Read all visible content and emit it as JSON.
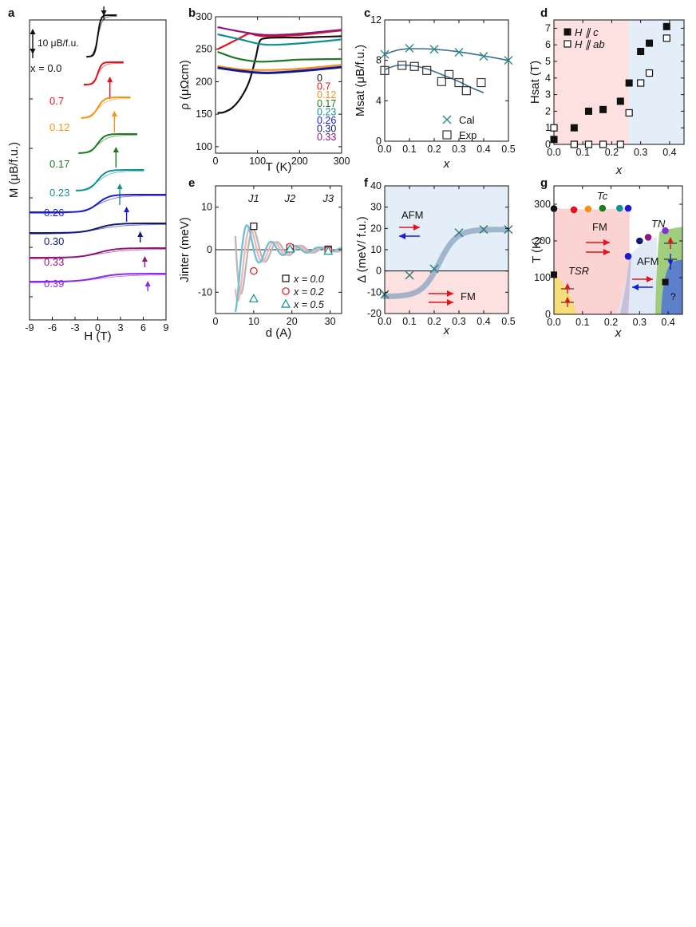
{
  "chart_data": [
    {
      "panel": "a",
      "type": "line",
      "xlabel": "H (T)",
      "ylabel": "M (μB/f.u.)",
      "scale_bar": "10 μB/f.u.",
      "x_prefix": "x = ",
      "xlim": [
        -9,
        9
      ],
      "xticks": [
        "-9",
        "-6",
        "-3",
        "0",
        "3",
        "6",
        "9"
      ],
      "series": [
        {
          "name": "0.0",
          "color": "#111111",
          "hsat": 1.0,
          "arrow_h": 0.8
        },
        {
          "name": "0.7",
          "color": "#e3121b",
          "hsat": 1.3,
          "arrow_h": 1.6
        },
        {
          "name": "0.12",
          "color": "#f29318",
          "hsat": 2.2,
          "arrow_h": 2.2
        },
        {
          "name": "0.17",
          "color": "#1f7a1f",
          "hsat": 2.4,
          "arrow_h": 2.4
        },
        {
          "name": "0.23",
          "color": "#139191",
          "hsat": 2.9,
          "arrow_h": 2.9
        },
        {
          "name": "0.26",
          "color": "#1a1adb",
          "hsat": 3.9,
          "arrow_h": 3.8
        },
        {
          "name": "0.30",
          "color": "#0e1a78",
          "hsat": 5.6,
          "arrow_h": 5.6
        },
        {
          "name": "0.33",
          "color": "#8b1a7c",
          "hsat": 6.2,
          "arrow_h": 6.2
        },
        {
          "name": "0.39",
          "color": "#8a2be2",
          "hsat": 6.6,
          "arrow_h": 6.6
        }
      ]
    },
    {
      "panel": "b",
      "type": "line",
      "xlabel": "T (K)",
      "ylabel": "ρ (μΩcm)",
      "xlim": [
        0,
        300
      ],
      "ylim": [
        90,
        300
      ],
      "xticks": [
        "0",
        "100",
        "200",
        "300"
      ],
      "yticks": [
        "100",
        "150",
        "200",
        "250",
        "300"
      ],
      "series": [
        {
          "name": "0",
          "color": "#111111",
          "points": [
            [
              5,
              152
            ],
            [
              20,
              153
            ],
            [
              40,
              160
            ],
            [
              60,
              175
            ],
            [
              80,
              200
            ],
            [
              95,
              235
            ],
            [
              105,
              262
            ],
            [
              120,
              267
            ],
            [
              150,
              268
            ],
            [
              200,
              268
            ],
            [
              250,
              269
            ],
            [
              300,
              270
            ]
          ]
        },
        {
          "name": "0.7",
          "color": "#e3121b",
          "points": [
            [
              5,
              250
            ],
            [
              30,
              258
            ],
            [
              60,
              268
            ],
            [
              80,
              274
            ],
            [
              95,
              272
            ],
            [
              120,
              270
            ],
            [
              200,
              272
            ],
            [
              300,
              279
            ]
          ]
        },
        {
          "name": "0.12",
          "color": "#f29318",
          "points": [
            [
              5,
              224
            ],
            [
              60,
              219
            ],
            [
              120,
              218
            ],
            [
              200,
              220
            ],
            [
              300,
              226
            ]
          ]
        },
        {
          "name": "0.17",
          "color": "#1f7a1f",
          "points": [
            [
              5,
              246
            ],
            [
              50,
              236
            ],
            [
              100,
              231
            ],
            [
              150,
              232
            ],
            [
              200,
              234
            ],
            [
              300,
              235
            ]
          ]
        },
        {
          "name": "0.23",
          "color": "#139191",
          "points": [
            [
              5,
              273
            ],
            [
              60,
              265
            ],
            [
              120,
              257
            ],
            [
              200,
              259
            ],
            [
              300,
              265
            ]
          ]
        },
        {
          "name": "0.26",
          "color": "#1a1adb",
          "points": [
            [
              5,
              222
            ],
            [
              60,
              217
            ],
            [
              120,
              214
            ],
            [
              200,
              217
            ],
            [
              300,
              223
            ]
          ]
        },
        {
          "name": "0.30",
          "color": "#0e1a78",
          "points": [
            [
              5,
              221
            ],
            [
              60,
              216
            ],
            [
              120,
              213
            ],
            [
              200,
              216
            ],
            [
              300,
              222
            ]
          ]
        },
        {
          "name": "0.33",
          "color": "#8b1a7c",
          "points": [
            [
              5,
              284
            ],
            [
              60,
              277
            ],
            [
              120,
              272
            ],
            [
              200,
              274
            ],
            [
              300,
              280
            ]
          ]
        }
      ]
    },
    {
      "panel": "c",
      "type": "scatter",
      "xlabel": "x",
      "ylabel": "Msat (μB/f.u.)",
      "xlim": [
        0,
        0.5
      ],
      "ylim": [
        0,
        12
      ],
      "xticks": [
        "0.0",
        "0.1",
        "0.2",
        "0.3",
        "0.4",
        "0.5"
      ],
      "yticks": [
        "0",
        "4",
        "8",
        "12"
      ],
      "series": [
        {
          "name": "Cal",
          "marker": "x",
          "color": "#2e8b8b",
          "points": [
            [
              0.0,
              8.6
            ],
            [
              0.1,
              9.2
            ],
            [
              0.2,
              9.1
            ],
            [
              0.3,
              8.8
            ],
            [
              0.4,
              8.4
            ],
            [
              0.5,
              8.0
            ]
          ],
          "fit": [
            [
              0.0,
              8.6
            ],
            [
              0.05,
              9.0
            ],
            [
              0.1,
              9.15
            ],
            [
              0.2,
              9.1
            ],
            [
              0.3,
              8.85
            ],
            [
              0.4,
              8.45
            ],
            [
              0.5,
              8.0
            ]
          ]
        },
        {
          "name": "Exp",
          "marker": "square",
          "color": "#333333",
          "points": [
            [
              0.0,
              7.0
            ],
            [
              0.07,
              7.5
            ],
            [
              0.12,
              7.4
            ],
            [
              0.17,
              7.0
            ],
            [
              0.23,
              5.9
            ],
            [
              0.26,
              6.6
            ],
            [
              0.3,
              5.8
            ],
            [
              0.33,
              5.0
            ],
            [
              0.39,
              5.8
            ]
          ],
          "fit": [
            [
              0.0,
              7.1
            ],
            [
              0.05,
              7.5
            ],
            [
              0.1,
              7.5
            ],
            [
              0.15,
              7.3
            ],
            [
              0.2,
              6.9
            ],
            [
              0.25,
              6.4
            ],
            [
              0.3,
              5.9
            ],
            [
              0.35,
              5.3
            ],
            [
              0.4,
              4.8
            ]
          ]
        }
      ]
    },
    {
      "panel": "d",
      "type": "scatter",
      "xlabel": "x",
      "ylabel": "Hsat (T)",
      "xlim": [
        0,
        0.45
      ],
      "ylim": [
        0,
        7.5
      ],
      "xticks": [
        "0.0",
        "0.1",
        "0.2",
        "0.3",
        "0.4"
      ],
      "yticks": [
        "0",
        "1",
        "2",
        "3",
        "4",
        "5",
        "6",
        "7"
      ],
      "boundary_x": 0.26,
      "series": [
        {
          "name": "H ∥ c",
          "marker": "filled-square",
          "points": [
            [
              0.0,
              0.3
            ],
            [
              0.07,
              1.0
            ],
            [
              0.12,
              2.0
            ],
            [
              0.17,
              2.1
            ],
            [
              0.23,
              2.6
            ],
            [
              0.26,
              3.7
            ],
            [
              0.3,
              5.6
            ],
            [
              0.33,
              6.1
            ],
            [
              0.39,
              7.1
            ]
          ]
        },
        {
          "name": "H ∥ ab",
          "marker": "open-square",
          "points": [
            [
              0.0,
              1.0
            ],
            [
              0.07,
              0.0
            ],
            [
              0.12,
              0.0
            ],
            [
              0.17,
              0.0
            ],
            [
              0.23,
              0.0
            ],
            [
              0.26,
              1.9
            ],
            [
              0.3,
              3.7
            ],
            [
              0.33,
              4.3
            ],
            [
              0.39,
              6.4
            ]
          ]
        }
      ]
    },
    {
      "panel": "e",
      "type": "line",
      "xlabel": "d (A)",
      "ylabel": "Jinter (meV)",
      "xlim": [
        0,
        33
      ],
      "ylim": [
        -15,
        15
      ],
      "xticks": [
        "0",
        "10",
        "20",
        "30"
      ],
      "yticks": [
        "-10",
        "0",
        "10"
      ],
      "labels": [
        "J1",
        "J2",
        "J3"
      ],
      "series": [
        {
          "name": "x = 0.0",
          "marker": "open-square",
          "color": "#111111",
          "points": [
            [
              10,
              5.5
            ],
            [
              19.5,
              0.4
            ],
            [
              29.5,
              0.1
            ]
          ]
        },
        {
          "name": "x = 0.2",
          "marker": "open-circle",
          "color": "#e3121b",
          "points": [
            [
              10,
              -5.0
            ],
            [
              19.5,
              0.7
            ],
            [
              29.5,
              -0.1
            ]
          ]
        },
        {
          "name": "x = 0.5",
          "marker": "open-triangle",
          "color": "#139191",
          "points": [
            [
              10,
              -11.5
            ],
            [
              19.5,
              0.2
            ],
            [
              29.5,
              -0.3
            ]
          ]
        }
      ]
    },
    {
      "panel": "f",
      "type": "scatter",
      "xlabel": "x",
      "ylabel": "Δ (meV/ f.u.)",
      "xlim": [
        0,
        0.5
      ],
      "ylim": [
        -20,
        40
      ],
      "xticks": [
        "0.0",
        "0.1",
        "0.2",
        "0.3",
        "0.4",
        "0.5"
      ],
      "yticks": [
        "-20",
        "-10",
        "0",
        "10",
        "20",
        "30",
        "40"
      ],
      "regions": [
        "AFM",
        "FM"
      ],
      "points": [
        [
          0.0,
          -11
        ],
        [
          0.1,
          -2
        ],
        [
          0.2,
          1
        ],
        [
          0.3,
          18
        ],
        [
          0.4,
          19.5
        ],
        [
          0.5,
          19.5
        ]
      ]
    },
    {
      "panel": "g",
      "type": "scatter",
      "xlabel": "x",
      "ylabel": "T (K)",
      "xlim": [
        0,
        0.45
      ],
      "ylim": [
        0,
        350
      ],
      "xticks": [
        "0.0",
        "0.1",
        "0.2",
        "0.3",
        "0.4"
      ],
      "yticks": [
        "0",
        "100",
        "200",
        "300"
      ],
      "labels": {
        "tc": "Tc",
        "tn": "TN",
        "tsr": "TSR",
        "fm": "FM",
        "afm": "AFM",
        "unknown": "?"
      },
      "tc_points": [
        [
          0.0,
          288,
          "#111111"
        ],
        [
          0.07,
          285,
          "#e3121b"
        ],
        [
          0.12,
          287,
          "#f29318"
        ],
        [
          0.17,
          289,
          "#1f7a1f"
        ],
        [
          0.23,
          289,
          "#139191"
        ],
        [
          0.26,
          289,
          "#1a1adb"
        ]
      ],
      "tn_points": [
        [
          0.26,
          158,
          "#1a1adb"
        ],
        [
          0.3,
          200,
          "#0e1a78"
        ],
        [
          0.33,
          210,
          "#8b1a7c"
        ],
        [
          0.39,
          228,
          "#8a2be2"
        ]
      ],
      "tsr_points": [
        [
          0.0,
          108,
          "#111111"
        ],
        [
          0.39,
          88,
          "#111111"
        ]
      ]
    }
  ],
  "panel_letters": [
    "a",
    "b",
    "c",
    "d",
    "e",
    "f",
    "g"
  ]
}
